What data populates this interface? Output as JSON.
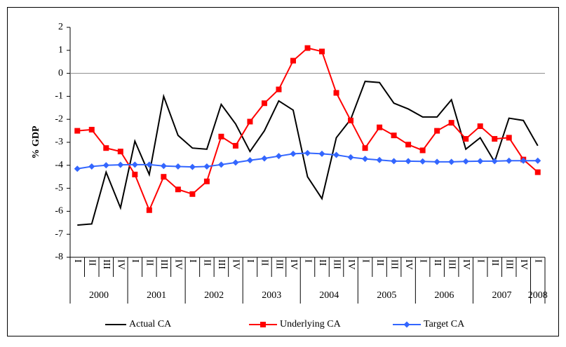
{
  "chart_data": {
    "type": "line",
    "y_label": "% GDP",
    "categories": [
      "I",
      "II",
      "III",
      "IV",
      "I",
      "II",
      "III",
      "IV",
      "I",
      "II",
      "III",
      "IV",
      "I",
      "II",
      "III",
      "IV",
      "I",
      "II",
      "III",
      "IV",
      "I",
      "II",
      "III",
      "IV",
      "I",
      "II",
      "III",
      "IV",
      "I",
      "II",
      "III",
      "IV",
      "I"
    ],
    "years": [
      "2000",
      "2001",
      "2002",
      "2003",
      "2004",
      "2005",
      "2006",
      "2007",
      "2008"
    ],
    "series": [
      {
        "name": "Actual CA",
        "color": "#000000",
        "marker": "none",
        "values": [
          -6.6,
          -6.55,
          -4.3,
          -5.85,
          -2.95,
          -4.4,
          -1.0,
          -2.7,
          -3.25,
          -3.3,
          -1.35,
          -2.2,
          -3.4,
          -2.5,
          -1.2,
          -1.6,
          -4.5,
          -5.45,
          -2.8,
          -2.0,
          -0.35,
          -0.4,
          -1.3,
          -1.55,
          -1.9,
          -1.9,
          -1.15,
          -3.3,
          -2.8,
          -3.85,
          -1.95,
          -2.05,
          -3.15
        ]
      },
      {
        "name": "Underlying CA",
        "color": "#ff0000",
        "marker": "square",
        "values": [
          -2.5,
          -2.45,
          -3.25,
          -3.4,
          -4.4,
          -5.95,
          -4.5,
          -5.05,
          -5.25,
          -4.7,
          -2.75,
          -3.15,
          -2.1,
          -1.3,
          -0.7,
          0.55,
          1.1,
          0.95,
          -0.85,
          -2.05,
          -3.25,
          -2.35,
          -2.7,
          -3.1,
          -3.35,
          -2.5,
          -2.15,
          -2.85,
          -2.3,
          -2.85,
          -2.8,
          -3.75,
          -4.3
        ]
      },
      {
        "name": "Target CA",
        "color": "#3366ff",
        "marker": "diamond",
        "values": [
          -4.15,
          -4.05,
          -4.0,
          -3.98,
          -3.97,
          -3.97,
          -4.03,
          -4.05,
          -4.07,
          -4.05,
          -3.97,
          -3.88,
          -3.78,
          -3.7,
          -3.6,
          -3.5,
          -3.47,
          -3.5,
          -3.55,
          -3.65,
          -3.72,
          -3.77,
          -3.82,
          -3.82,
          -3.83,
          -3.85,
          -3.85,
          -3.83,
          -3.82,
          -3.82,
          -3.8,
          -3.8,
          -3.8
        ]
      }
    ],
    "ylim": [
      -8,
      2
    ],
    "yticks": [
      -8,
      -7,
      -6,
      -5,
      -4,
      -3,
      -2,
      -1,
      0,
      1,
      2
    ],
    "zero_line": true,
    "grid": false,
    "legend": "bottom"
  }
}
